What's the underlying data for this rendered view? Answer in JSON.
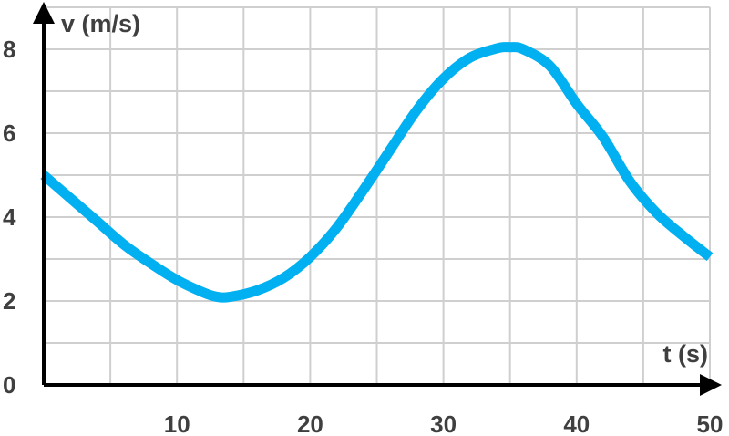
{
  "chart_data": {
    "type": "line",
    "xlabel": "t (s)",
    "ylabel": "v (m/s)",
    "xlim": [
      0,
      50
    ],
    "ylim": [
      0,
      8
    ],
    "x_ticks": [
      10,
      20,
      30,
      40,
      50
    ],
    "y_ticks": [
      0,
      2,
      4,
      6,
      8
    ],
    "x_grid_step": 5,
    "y_grid_step": 1,
    "grid": true,
    "series": [
      {
        "color": "#00b0f0",
        "x": [
          0,
          2,
          4,
          6,
          8,
          10,
          12,
          13,
          14,
          16,
          18,
          20,
          22,
          24,
          26,
          28,
          30,
          32,
          34,
          35,
          36,
          38,
          40,
          42,
          44,
          46,
          48,
          50
        ],
        "y": [
          5.0,
          4.45,
          3.9,
          3.35,
          2.9,
          2.5,
          2.2,
          2.1,
          2.1,
          2.25,
          2.55,
          3.05,
          3.75,
          4.65,
          5.6,
          6.55,
          7.3,
          7.8,
          8.02,
          8.05,
          8.0,
          7.6,
          6.7,
          5.9,
          4.85,
          4.1,
          3.55,
          3.05
        ]
      }
    ]
  }
}
